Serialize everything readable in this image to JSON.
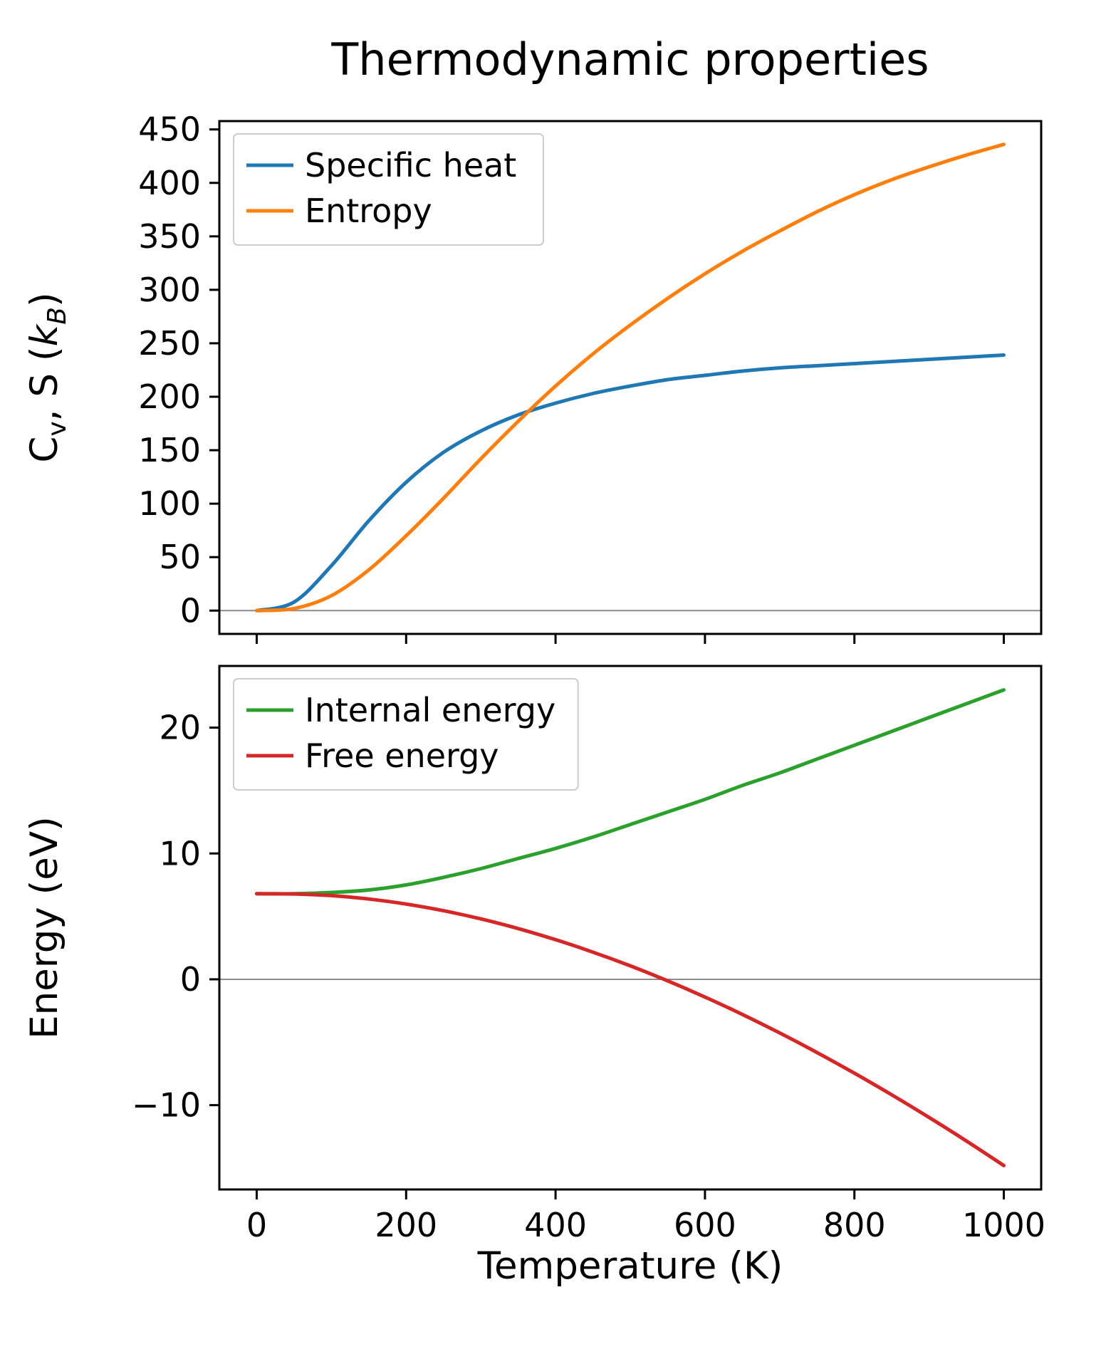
{
  "title": "Thermodynamic properties",
  "xlabel": "Temperature (K)",
  "chart_data": [
    {
      "type": "line",
      "subplot": "top",
      "ylabel": "C_v, S (k_B)",
      "ylabel_parts": [
        {
          "text": "C"
        },
        {
          "text": "v",
          "sub": true
        },
        {
          "text": ", S ("
        },
        {
          "text": "k",
          "italic": true
        },
        {
          "text": "B",
          "sub": true,
          "italic": true
        },
        {
          "text": ")"
        }
      ],
      "x": [
        0,
        50,
        100,
        150,
        200,
        250,
        300,
        350,
        400,
        450,
        500,
        550,
        600,
        650,
        700,
        750,
        800,
        850,
        900,
        950,
        1000
      ],
      "series": [
        {
          "name": "Specific heat",
          "color": "#1f77b4",
          "values": [
            0,
            8,
            42,
            84,
            120,
            148,
            168,
            183,
            194,
            203,
            210,
            216,
            220,
            224,
            227,
            229,
            231,
            233,
            235,
            237,
            239
          ]
        },
        {
          "name": "Entropy",
          "color": "#ff7f0e",
          "values": [
            0,
            2,
            14,
            38,
            70,
            105,
            142,
            177,
            210,
            240,
            267,
            292,
            315,
            336,
            355,
            373,
            389,
            403,
            415,
            426,
            436
          ]
        }
      ],
      "xlim": [
        -50,
        1050
      ],
      "ylim": [
        -21.8,
        457.8
      ],
      "xticks": [
        0,
        200,
        400,
        600,
        800,
        1000
      ],
      "yticks": [
        0,
        50,
        100,
        150,
        200,
        250,
        300,
        350,
        400,
        450
      ],
      "show_x_tick_labels": false,
      "zero_line": true,
      "zero_line_color": "#8c8c8c",
      "grid": false,
      "legend": {
        "location": "upper left",
        "entries": [
          "Specific heat",
          "Entropy"
        ]
      }
    },
    {
      "type": "line",
      "subplot": "bottom",
      "ylabel": "Energy (eV)",
      "x": [
        0,
        50,
        100,
        150,
        200,
        250,
        300,
        350,
        400,
        450,
        500,
        550,
        600,
        650,
        700,
        750,
        800,
        850,
        900,
        950,
        1000
      ],
      "series": [
        {
          "name": "Internal energy",
          "color": "#2ca02c",
          "values": [
            6.8,
            6.8,
            6.9,
            7.1,
            7.5,
            8.1,
            8.8,
            9.6,
            10.4,
            11.3,
            12.3,
            13.3,
            14.3,
            15.4,
            16.4,
            17.5,
            18.6,
            19.7,
            20.8,
            21.9,
            23.0
          ]
        },
        {
          "name": "Free energy",
          "color": "#d62728",
          "values": [
            6.8,
            6.78,
            6.65,
            6.38,
            5.98,
            5.45,
            4.8,
            4.03,
            3.15,
            2.16,
            1.07,
            -0.12,
            -1.41,
            -2.79,
            -4.26,
            -5.82,
            -7.46,
            -9.18,
            -10.98,
            -12.85,
            -14.8
          ]
        }
      ],
      "xlim": [
        -50,
        1050
      ],
      "ylim": [
        -16.7,
        24.9
      ],
      "xticks": [
        0,
        200,
        400,
        600,
        800,
        1000
      ],
      "yticks": [
        -10,
        0,
        10,
        20
      ],
      "show_x_tick_labels": true,
      "zero_line": true,
      "zero_line_color": "#8c8c8c",
      "grid": false,
      "legend": {
        "location": "upper left",
        "entries": [
          "Internal energy",
          "Free energy"
        ]
      }
    }
  ]
}
